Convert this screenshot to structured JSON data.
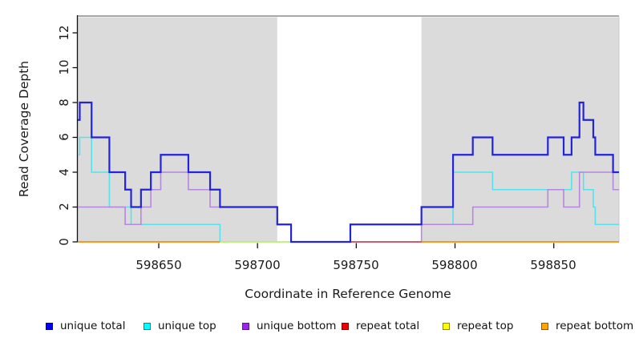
{
  "chart_data": {
    "type": "line",
    "line_style": "step",
    "xlabel": "Coordinate in Reference Genome",
    "ylabel": "Read Coverage Depth",
    "xlim": [
      598609,
      598883
    ],
    "ylim": [
      0,
      13.1
    ],
    "x_ticks": [
      598650,
      598700,
      598750,
      598800,
      598850
    ],
    "y_ticks": [
      0,
      2,
      4,
      6,
      8,
      10,
      12
    ],
    "grid": false,
    "legend_position": "bottom",
    "background_color": "#ffffff",
    "shaded_region_color": "#dbdbdb",
    "shaded_regions": [
      {
        "x0": 598609,
        "x1": 598710
      },
      {
        "x0": 598783,
        "x1": 598883
      }
    ],
    "draw_order": [
      1,
      4,
      2,
      3,
      5,
      0
    ],
    "series": [
      {
        "name": "unique total",
        "color": "#0000EE",
        "swatch_border": "#000088",
        "line_color": "#2323DC",
        "line_width": 2.2,
        "segments": [
          {
            "end": 598883,
            "steps": [
              [
                598609,
                7
              ],
              [
                598610,
                8
              ],
              [
                598616,
                6
              ],
              [
                598625,
                4
              ],
              [
                598633,
                3
              ],
              [
                598636,
                2
              ],
              [
                598641,
                3
              ],
              [
                598646,
                4
              ],
              [
                598651,
                5
              ],
              [
                598665,
                4
              ],
              [
                598676,
                3
              ],
              [
                598681,
                2
              ],
              [
                598710,
                1
              ],
              [
                598717,
                0
              ],
              [
                598747,
                1
              ],
              [
                598783,
                2
              ],
              [
                598799,
                5
              ],
              [
                598809,
                6
              ],
              [
                598819,
                5
              ],
              [
                598847,
                6
              ],
              [
                598855,
                5
              ],
              [
                598859,
                6
              ],
              [
                598863,
                8
              ],
              [
                598865,
                7
              ],
              [
                598870,
                6
              ],
              [
                598871,
                5
              ],
              [
                598880,
                4
              ]
            ]
          }
        ]
      },
      {
        "name": "unique top",
        "color": "#00FFFF",
        "swatch_border": "#008B8B",
        "line_color": "#55E2EC",
        "line_width": 1.6,
        "segments": [
          {
            "end": 598883,
            "steps": [
              [
                598609,
                5
              ],
              [
                598610,
                6
              ],
              [
                598616,
                4
              ],
              [
                598625,
                2
              ],
              [
                598636,
                1
              ],
              [
                598681,
                0
              ],
              [
                598747,
                1
              ],
              [
                598799,
                4
              ],
              [
                598819,
                3
              ],
              [
                598859,
                4
              ],
              [
                598865,
                3
              ],
              [
                598870,
                2
              ],
              [
                598871,
                1
              ]
            ]
          }
        ]
      },
      {
        "name": "unique bottom",
        "color": "#A020F0",
        "swatch_border": "#551A8B",
        "line_color": "#B488DC",
        "line_width": 1.6,
        "segments": [
          {
            "end": 598883,
            "steps": [
              [
                598609,
                2
              ],
              [
                598633,
                1
              ],
              [
                598641,
                2
              ],
              [
                598646,
                3
              ],
              [
                598651,
                4
              ],
              [
                598665,
                3
              ],
              [
                598676,
                2
              ],
              [
                598710,
                1
              ],
              [
                598717,
                0
              ],
              [
                598783,
                1
              ],
              [
                598809,
                2
              ],
              [
                598847,
                3
              ],
              [
                598855,
                2
              ],
              [
                598863,
                4
              ],
              [
                598880,
                3
              ]
            ]
          }
        ]
      },
      {
        "name": "repeat total",
        "color": "#EE0000",
        "swatch_border": "#8B0000",
        "line_color": "#C93A4C",
        "line_width": 1.6,
        "segments": [
          {
            "end": 598783,
            "steps": [
              [
                598747,
                0
              ]
            ]
          }
        ]
      },
      {
        "name": "repeat top",
        "color": "#FFFF00",
        "swatch_border": "#8B8B00",
        "line_color": "rgba(255,255,0,0.62)",
        "line_width": 1.6,
        "segments": [
          {
            "end": 598747,
            "steps": [
              [
                598681,
                0
              ]
            ]
          }
        ]
      },
      {
        "name": "repeat bottom",
        "color": "#FFA500",
        "swatch_border": "#8B5A00",
        "line_color": "#FF8C00",
        "line_width": 1.8,
        "segments": [
          {
            "end": 598681,
            "steps": [
              [
                598609,
                0
              ]
            ]
          },
          {
            "end": 598883,
            "steps": [
              [
                598783,
                0
              ]
            ]
          }
        ]
      }
    ]
  }
}
